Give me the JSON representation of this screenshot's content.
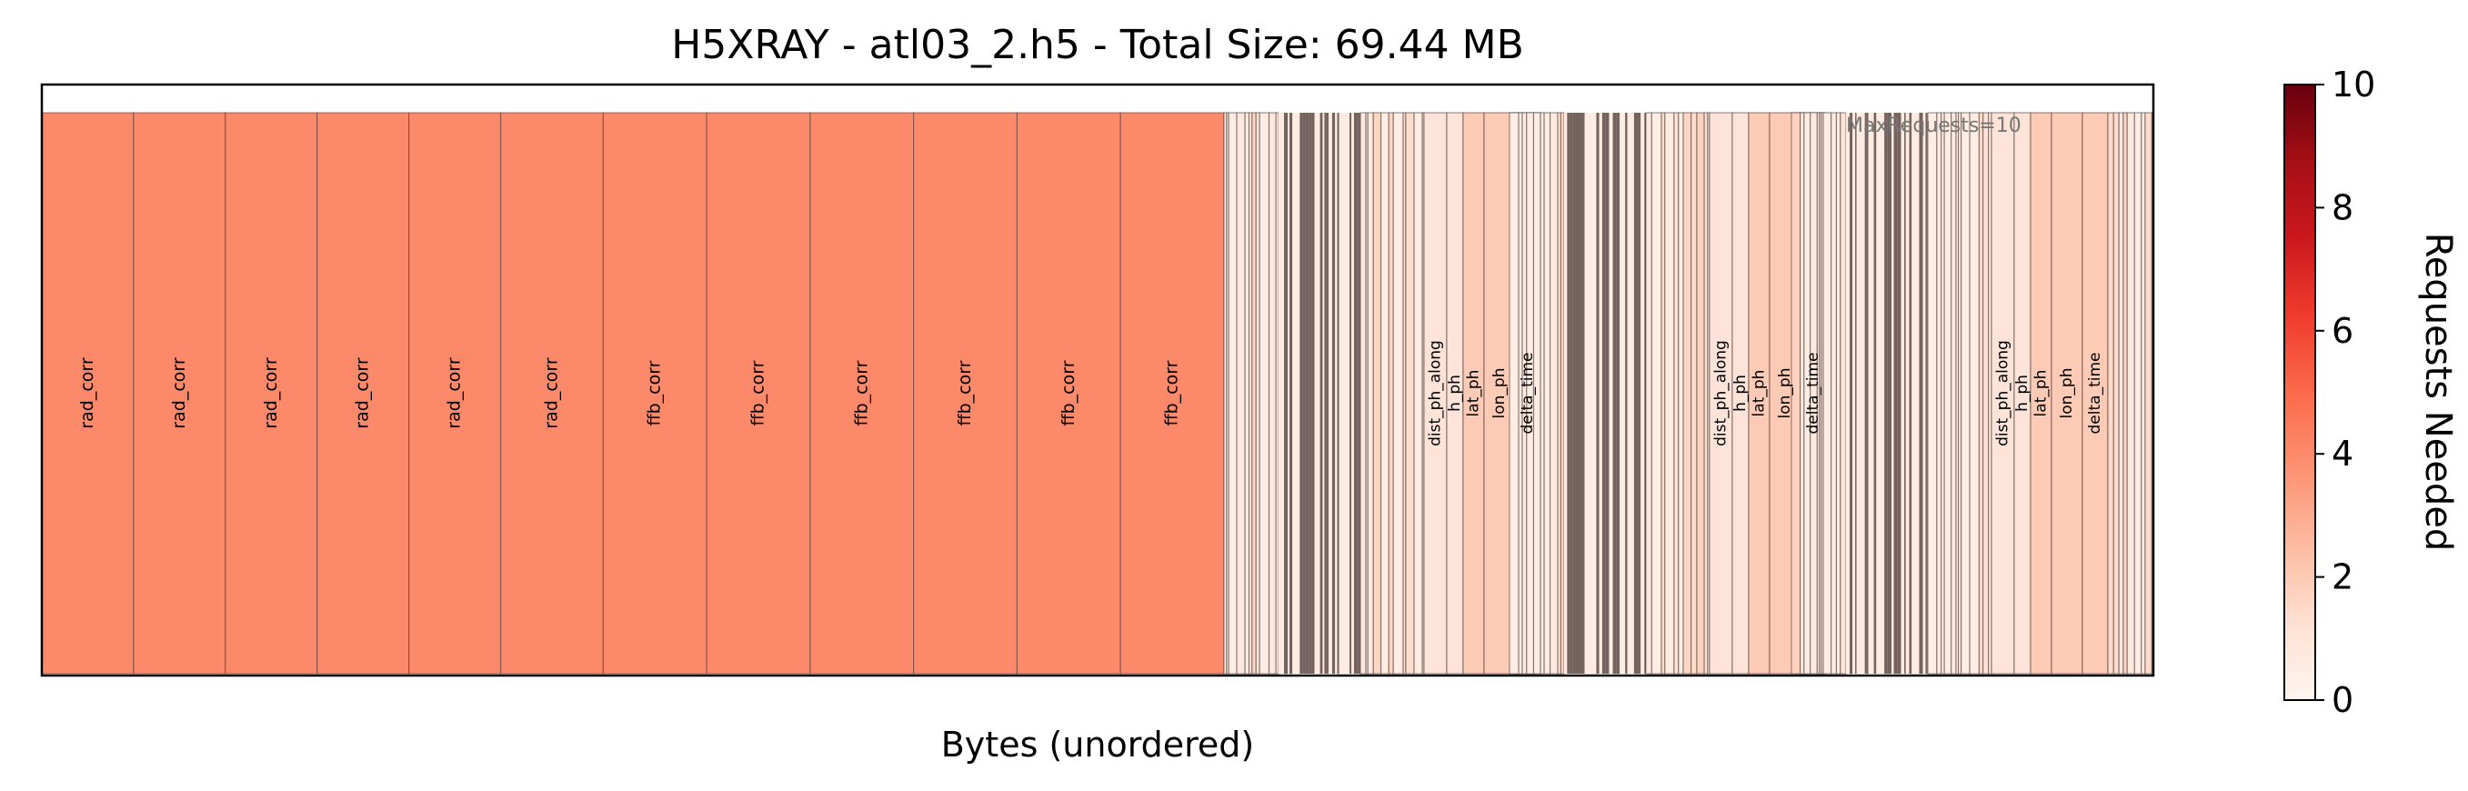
{
  "chart_data": {
    "type": "heatmap",
    "title": "H5XRAY - atl03_2.h5 - Total Size: 69.44 MB",
    "xlabel": "Bytes (unordered)",
    "ylabel": "",
    "annotation": "MaxRequests=10",
    "colormap": "Reds",
    "colorbar": {
      "label": "Requests Needed",
      "range": [
        0,
        10
      ],
      "ticks": [
        "0",
        "2",
        "4",
        "6",
        "8",
        "10"
      ],
      "stops": [
        "#fff5f0",
        "#fee0d2",
        "#fcbba1",
        "#fc9272",
        "#fb6a4a",
        "#ef3b2c",
        "#cb181d",
        "#a50f15",
        "#67000d"
      ]
    },
    "large_blocks": [
      {
        "label": "rad_corr",
        "requests": 4
      },
      {
        "label": "rad_corr",
        "requests": 4
      },
      {
        "label": "rad_corr",
        "requests": 4
      },
      {
        "label": "rad_corr",
        "requests": 4
      },
      {
        "label": "rad_corr",
        "requests": 4
      },
      {
        "label": "rad_corr",
        "requests": 4
      },
      {
        "label": "ffb_corr",
        "requests": 4
      },
      {
        "label": "ffb_corr",
        "requests": 4
      },
      {
        "label": "ffb_corr",
        "requests": 4
      },
      {
        "label": "ffb_corr",
        "requests": 4
      },
      {
        "label": "ffb_corr",
        "requests": 4
      },
      {
        "label": "ffb_corr",
        "requests": 4
      }
    ],
    "groups": [
      {
        "variables": [
          {
            "label": "dist_ph_along",
            "requests": 1
          },
          {
            "label": "h_ph",
            "requests": 1
          },
          {
            "label": "lat_ph",
            "requests": 2
          },
          {
            "label": "lon_ph",
            "requests": 2
          },
          {
            "label": "delta_time",
            "requests": 2
          }
        ]
      },
      {
        "variables": [
          {
            "label": "dist_ph_along",
            "requests": 1
          },
          {
            "label": "h_ph",
            "requests": 1
          },
          {
            "label": "lat_ph",
            "requests": 2
          },
          {
            "label": "lon_ph",
            "requests": 2
          },
          {
            "label": "delta_time",
            "requests": 2
          }
        ]
      },
      {
        "variables": [
          {
            "label": "dist_ph_along",
            "requests": 1
          },
          {
            "label": "h_ph",
            "requests": 1
          },
          {
            "label": "lat_ph",
            "requests": 2
          },
          {
            "label": "lon_ph",
            "requests": 2
          },
          {
            "label": "delta_time",
            "requests": 2
          }
        ]
      }
    ]
  }
}
